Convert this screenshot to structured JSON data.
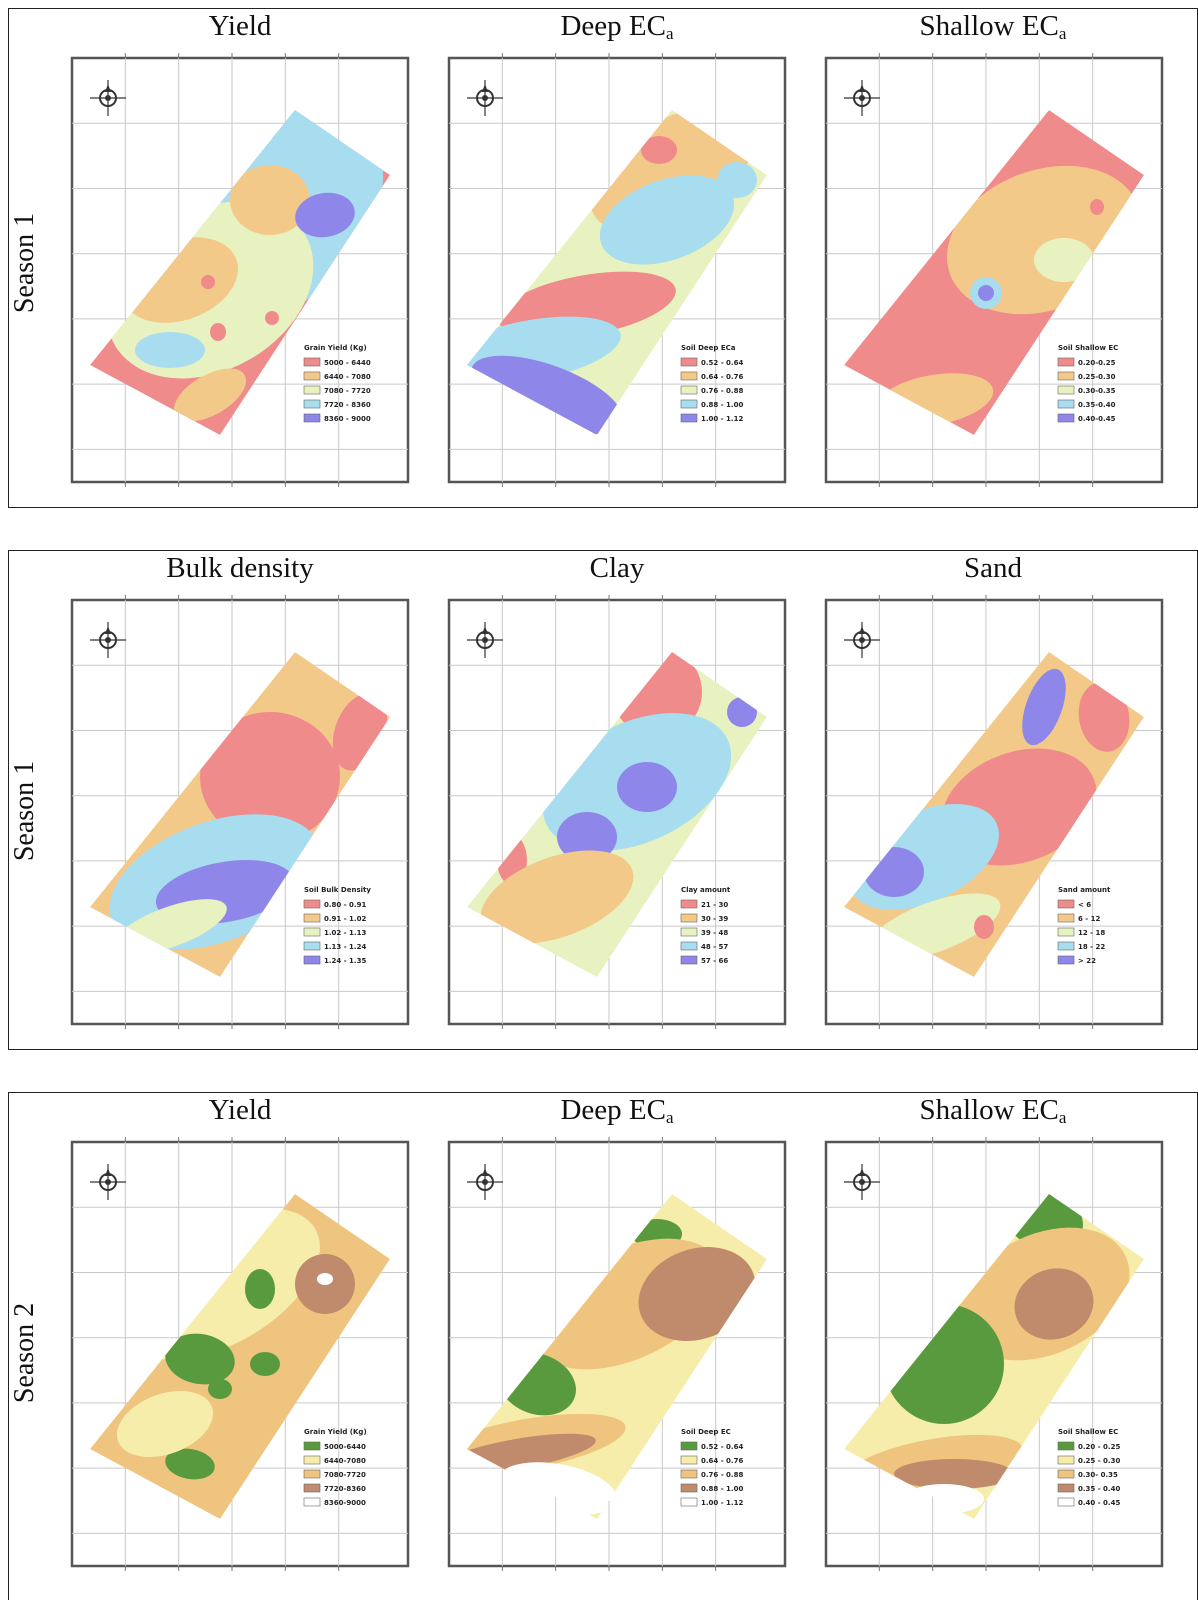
{
  "rows": [
    {
      "season": "Season 1",
      "panels": [
        {
          "title": "Yield",
          "sub": "",
          "legend_title": "Grain Yield (Kg)",
          "legend": [
            "5000 - 6440",
            "6440 - 7080",
            "7080 - 7720",
            "7720 - 8360",
            "8360 - 9000"
          ],
          "colors": [
            "#ef8b8b",
            "#f3c98a",
            "#e8f2c0",
            "#a8dcef",
            "#8f86ea"
          ]
        },
        {
          "title": "Deep EC",
          "sub": "a",
          "legend_title": "Soil Deep ECa",
          "legend": [
            "0.52 - 0.64",
            "0.64 - 0.76",
            "0.76 - 0.88",
            "0.88 - 1.00",
            "1.00 - 1.12"
          ],
          "colors": [
            "#ef8b8b",
            "#f3c98a",
            "#e8f2c0",
            "#a8dcef",
            "#8f86ea"
          ]
        },
        {
          "title": "Shallow EC",
          "sub": "a",
          "legend_title": "Soil Shallow EC",
          "legend": [
            "0.20-0.25",
            "0.25-0.30",
            "0.30-0.35",
            "0.35-0.40",
            "0.40-0.45"
          ],
          "colors": [
            "#ef8b8b",
            "#f3c98a",
            "#e8f2c0",
            "#a8dcef",
            "#8f86ea"
          ]
        }
      ]
    },
    {
      "season": "Season 1",
      "panels": [
        {
          "title": "Bulk density",
          "sub": "",
          "legend_title": "Soil Bulk Density",
          "legend": [
            "0.80 - 0.91",
            "0.91 - 1.02",
            "1.02 - 1.13",
            "1.13 - 1.24",
            "1.24 - 1.35"
          ],
          "colors": [
            "#ef8b8b",
            "#f3c98a",
            "#e8f2c0",
            "#a8dcef",
            "#8f86ea"
          ]
        },
        {
          "title": "Clay",
          "sub": "",
          "legend_title": "Clay amount",
          "legend": [
            "21 - 30",
            "30 - 39",
            "39 - 48",
            "48 - 57",
            "57 - 66"
          ],
          "colors": [
            "#ef8b8b",
            "#f3c98a",
            "#e8f2c0",
            "#a8dcef",
            "#8f86ea"
          ]
        },
        {
          "title": "Sand",
          "sub": "",
          "legend_title": "Sand amount",
          "legend": [
            "< 6",
            "6 - 12",
            "12 - 18",
            "18 - 22",
            "> 22"
          ],
          "colors": [
            "#ef8b8b",
            "#f3c98a",
            "#e8f2c0",
            "#a8dcef",
            "#8f86ea"
          ]
        }
      ]
    },
    {
      "season": "Season 2",
      "panels": [
        {
          "title": "Yield",
          "sub": "",
          "legend_title": "Grain Yield (Kg)",
          "legend": [
            "5000-6440",
            "6440-7080",
            "7080-7720",
            "7720-8360",
            "8360-9000"
          ],
          "colors": [
            "#5a9a3e",
            "#f6edaa",
            "#efc47e",
            "#c08a6c",
            "#ffffff"
          ]
        },
        {
          "title": "Deep EC",
          "sub": "a",
          "legend_title": "Soil Deep EC",
          "legend": [
            "0.52 - 0.64",
            "0.64 - 0.76",
            "0.76 - 0.88",
            "0.88 - 1.00",
            "1.00 - 1.12"
          ],
          "colors": [
            "#5a9a3e",
            "#f6edaa",
            "#efc47e",
            "#c08a6c",
            "#ffffff"
          ]
        },
        {
          "title": "Shallow EC",
          "sub": "a",
          "legend_title": "Soil Shallow EC",
          "legend": [
            "0.20 - 0.25",
            "0.25 - 0.30",
            "0.30- 0.35",
            "0.35 - 0.40",
            "0.40 - 0.45"
          ],
          "colors": [
            "#5a9a3e",
            "#f6edaa",
            "#efc47e",
            "#c08a6c",
            "#ffffff"
          ]
        }
      ]
    }
  ]
}
